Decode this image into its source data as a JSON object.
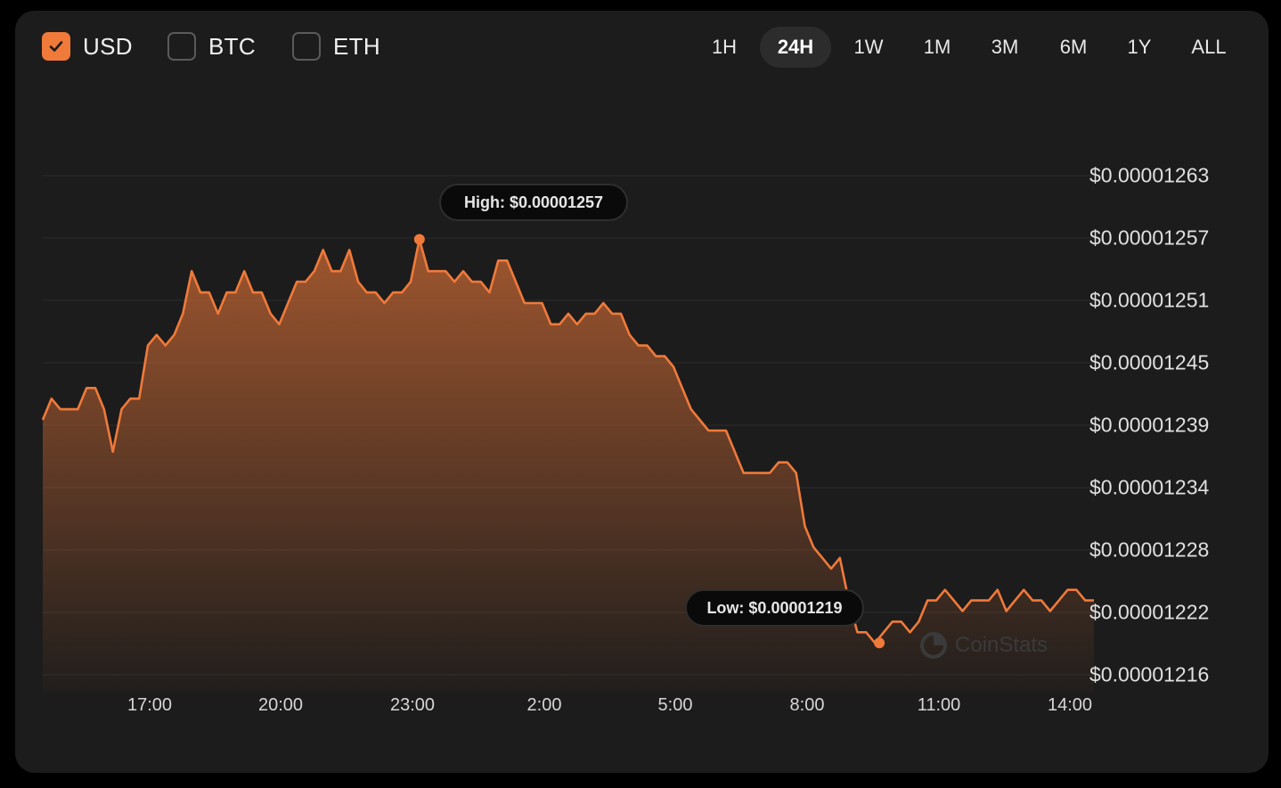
{
  "currencies": [
    {
      "label": "USD",
      "checked": true
    },
    {
      "label": "BTC",
      "checked": false
    },
    {
      "label": "ETH",
      "checked": false
    }
  ],
  "ranges": [
    {
      "label": "1H",
      "active": false
    },
    {
      "label": "24H",
      "active": true
    },
    {
      "label": "1W",
      "active": false
    },
    {
      "label": "1M",
      "active": false
    },
    {
      "label": "3M",
      "active": false
    },
    {
      "label": "6M",
      "active": false
    },
    {
      "label": "1Y",
      "active": false
    },
    {
      "label": "ALL",
      "active": false
    }
  ],
  "high_label": "High: $0.00001257",
  "low_label": "Low: $0.00001219",
  "watermark": "CoinStats",
  "colors": {
    "accent": "#f07a3a",
    "background": "#1c1c1c",
    "grid": "#2c2c2c"
  },
  "icons": {
    "check": "check-icon",
    "watermark": "coinstats-logo-icon"
  },
  "chart_data": {
    "type": "area",
    "ylim": [
      1.216e-05,
      1.263e-05
    ],
    "y_ticks": [
      "$0.00001263",
      "$0.00001257",
      "$0.00001251",
      "$0.00001245",
      "$0.00001239",
      "$0.00001234",
      "$0.00001228",
      "$0.00001222",
      "$0.00001216"
    ],
    "x_ticks": [
      "17:00",
      "20:00",
      "23:00",
      "2:00",
      "5:00",
      "8:00",
      "11:00",
      "14:00"
    ],
    "x_start_hour": 14.6,
    "x_end_hour": 38.6,
    "grid": true,
    "high": {
      "x": 23.2,
      "y": 1.257e-05
    },
    "low": {
      "x": 33.7,
      "y": 1.219e-05
    },
    "series": [
      {
        "x": [
          14.6,
          14.8,
          15.0,
          15.2,
          15.4,
          15.6,
          15.8,
          16.0,
          16.2,
          16.4,
          16.6,
          16.8,
          17.0,
          17.2,
          17.4,
          17.6,
          17.8,
          18.0,
          18.2,
          18.4,
          18.6,
          18.8,
          19.0,
          19.2,
          19.4,
          19.6,
          19.8,
          20.0,
          20.2,
          20.4,
          20.6,
          20.8,
          21.0,
          21.2,
          21.4,
          21.6,
          21.8,
          22.0,
          22.2,
          22.4,
          22.6,
          22.8,
          23.0,
          23.2,
          23.4,
          23.6,
          23.8,
          24.0,
          24.2,
          24.4,
          24.6,
          24.8,
          25.0,
          25.2,
          25.4,
          25.6,
          25.8,
          26.0,
          26.2,
          26.4,
          26.6,
          26.8,
          27.0,
          27.2,
          27.4,
          27.6,
          27.8,
          28.0,
          28.2,
          28.4,
          28.6,
          28.8,
          29.0,
          29.2,
          29.4,
          29.6,
          29.8,
          30.0,
          30.2,
          30.4,
          30.6,
          30.8,
          31.0,
          31.2,
          31.4,
          31.6,
          31.8,
          32.0,
          32.2,
          32.4,
          32.6,
          32.8,
          33.0,
          33.2,
          33.4,
          33.6,
          33.8,
          34.0,
          34.2,
          34.4,
          34.6,
          34.8,
          35.0,
          35.2,
          35.4,
          35.6,
          35.8,
          36.0,
          36.2,
          36.4,
          36.6,
          36.8,
          37.0,
          37.2,
          37.4,
          37.6,
          37.8,
          38.0,
          38.2,
          38.4,
          38.6
        ],
        "values": [
          1.24e-05,
          1.242e-05,
          1.241e-05,
          1.241e-05,
          1.241e-05,
          1.243e-05,
          1.243e-05,
          1.241e-05,
          1.237e-05,
          1.241e-05,
          1.242e-05,
          1.242e-05,
          1.247e-05,
          1.248e-05,
          1.247e-05,
          1.248e-05,
          1.25e-05,
          1.254e-05,
          1.252e-05,
          1.252e-05,
          1.25e-05,
          1.252e-05,
          1.252e-05,
          1.254e-05,
          1.252e-05,
          1.252e-05,
          1.25e-05,
          1.249e-05,
          1.251e-05,
          1.253e-05,
          1.253e-05,
          1.254e-05,
          1.256e-05,
          1.254e-05,
          1.254e-05,
          1.256e-05,
          1.253e-05,
          1.252e-05,
          1.252e-05,
          1.251e-05,
          1.252e-05,
          1.252e-05,
          1.253e-05,
          1.257e-05,
          1.254e-05,
          1.254e-05,
          1.254e-05,
          1.253e-05,
          1.254e-05,
          1.253e-05,
          1.253e-05,
          1.252e-05,
          1.255e-05,
          1.255e-05,
          1.253e-05,
          1.251e-05,
          1.251e-05,
          1.251e-05,
          1.249e-05,
          1.249e-05,
          1.25e-05,
          1.249e-05,
          1.25e-05,
          1.25e-05,
          1.251e-05,
          1.25e-05,
          1.25e-05,
          1.248e-05,
          1.247e-05,
          1.247e-05,
          1.246e-05,
          1.246e-05,
          1.245e-05,
          1.243e-05,
          1.241e-05,
          1.24e-05,
          1.239e-05,
          1.239e-05,
          1.239e-05,
          1.237e-05,
          1.235e-05,
          1.235e-05,
          1.235e-05,
          1.235e-05,
          1.236e-05,
          1.236e-05,
          1.235e-05,
          1.23e-05,
          1.228e-05,
          1.227e-05,
          1.226e-05,
          1.227e-05,
          1.223e-05,
          1.22e-05,
          1.22e-05,
          1.219e-05,
          1.22e-05,
          1.221e-05,
          1.221e-05,
          1.22e-05,
          1.221e-05,
          1.223e-05,
          1.223e-05,
          1.224e-05,
          1.223e-05,
          1.222e-05,
          1.223e-05,
          1.223e-05,
          1.223e-05,
          1.224e-05,
          1.222e-05,
          1.223e-05,
          1.224e-05,
          1.223e-05,
          1.223e-05,
          1.222e-05,
          1.223e-05,
          1.224e-05,
          1.224e-05,
          1.223e-05,
          1.223e-05
        ]
      }
    ]
  }
}
